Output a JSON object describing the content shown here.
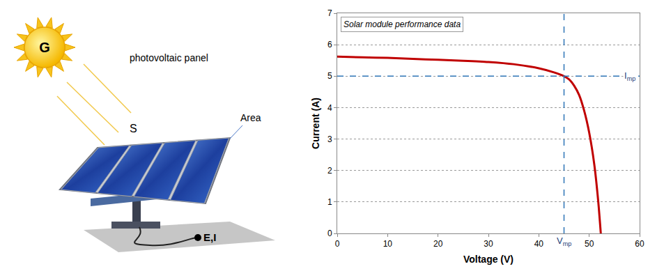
{
  "illustration": {
    "sun_label": "G",
    "title": "photovoltaic panel",
    "irradiance_label": "S",
    "area_label": "Area",
    "output_label": "E,I"
  },
  "chart_data": {
    "type": "line",
    "title": "Solar module performance data",
    "x_label": "Voltage (V)",
    "y_label": "Current (A)",
    "x": [
      0,
      5,
      10,
      15,
      20,
      25,
      30,
      35,
      40,
      43,
      45,
      46,
      47,
      48,
      49,
      50,
      51,
      51.8,
      52.3
    ],
    "values": [
      5.62,
      5.6,
      5.58,
      5.55,
      5.52,
      5.49,
      5.45,
      5.38,
      5.25,
      5.12,
      5.0,
      4.9,
      4.7,
      4.4,
      3.9,
      3.2,
      2.2,
      1.0,
      0
    ],
    "color": "#c00000",
    "line_style": "solid",
    "xlim": [
      0,
      60
    ],
    "xticks": [
      0,
      10,
      20,
      30,
      40,
      50,
      60
    ],
    "ylim": [
      0,
      7
    ],
    "yticks": [
      0,
      1,
      2,
      3,
      4,
      5,
      6,
      7
    ],
    "grid": true,
    "reference_lines": [
      {
        "axis": "x",
        "value": 45,
        "label": "V",
        "subscript": "mp",
        "color": "#2e75b6",
        "line_style": "dash"
      },
      {
        "axis": "y",
        "value": 5,
        "label": "I",
        "subscript": "mp",
        "color": "#2e75b6",
        "line_style": "dash"
      }
    ]
  }
}
